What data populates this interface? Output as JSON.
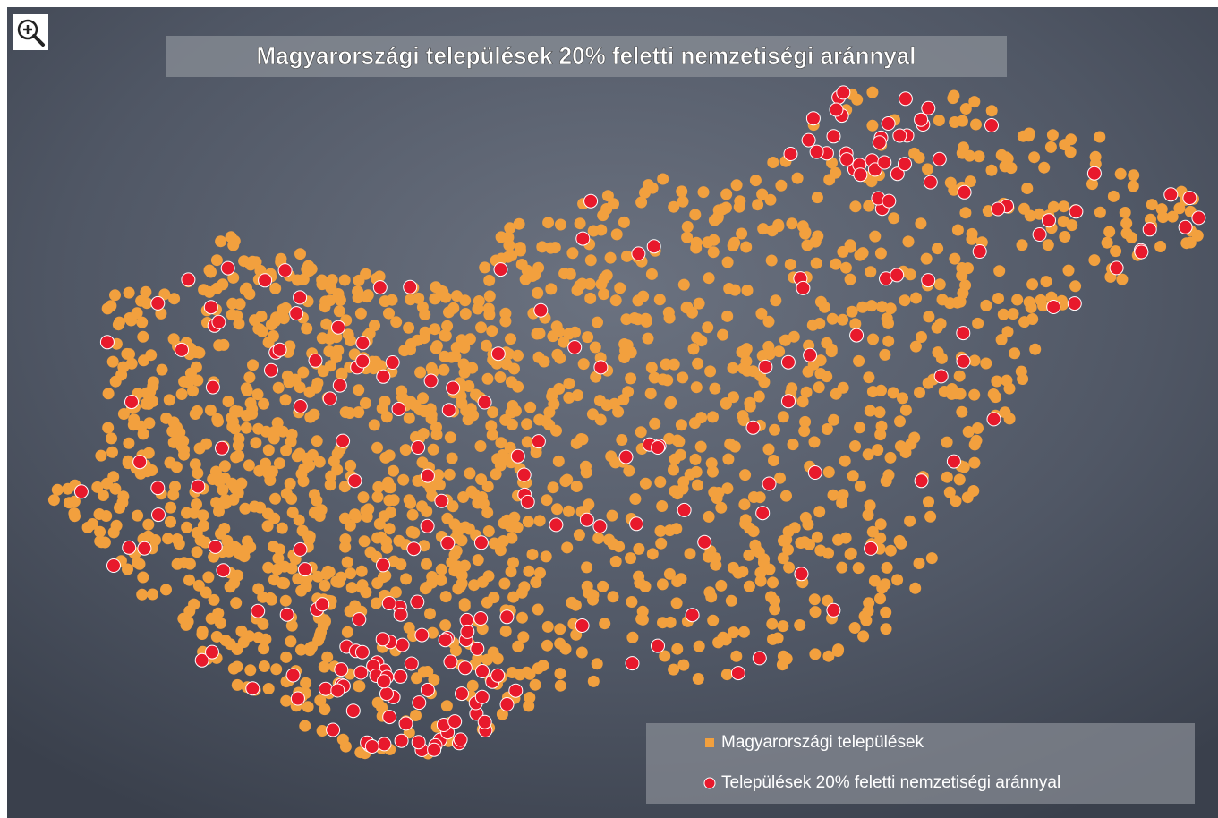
{
  "title": "Magyarországi települések 20% feletti nemzetiségi aránnyal",
  "legend": {
    "items": [
      {
        "label": "Magyarországi települések",
        "color": "#f2a03e"
      },
      {
        "label": "Települések 20% feletti nemzetiségi aránnyal",
        "color": "#e8192c"
      }
    ]
  }
}
